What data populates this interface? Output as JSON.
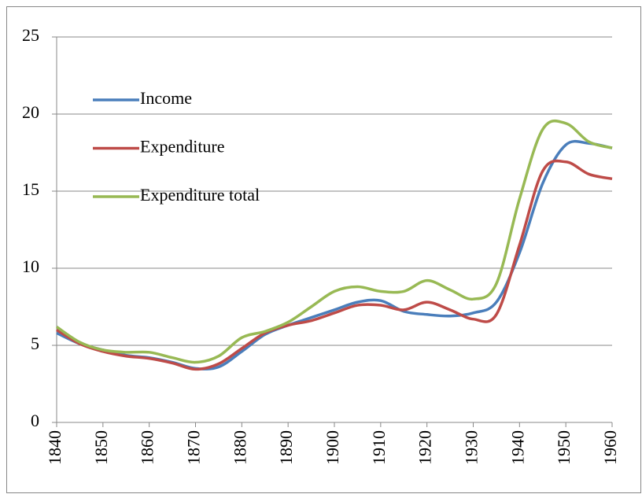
{
  "chart_data": {
    "type": "line",
    "x": [
      1840,
      1845,
      1850,
      1855,
      1860,
      1865,
      1870,
      1875,
      1880,
      1885,
      1890,
      1895,
      1900,
      1905,
      1910,
      1915,
      1920,
      1925,
      1930,
      1935,
      1940,
      1945,
      1950,
      1955,
      1960
    ],
    "series": [
      {
        "name": "Income",
        "color": "#4a7ebb",
        "values": [
          5.8,
          5.1,
          4.7,
          4.35,
          4.2,
          3.9,
          3.5,
          3.6,
          4.6,
          5.7,
          6.3,
          6.8,
          7.3,
          7.8,
          7.9,
          7.2,
          7.0,
          6.9,
          7.1,
          7.8,
          11.0,
          15.5,
          18.0,
          18.1,
          17.8
        ]
      },
      {
        "name": "Expenditure",
        "color": "#be4b48",
        "values": [
          6.0,
          5.1,
          4.6,
          4.3,
          4.15,
          3.85,
          3.45,
          3.8,
          4.8,
          5.8,
          6.3,
          6.6,
          7.1,
          7.6,
          7.6,
          7.3,
          7.8,
          7.3,
          6.7,
          7.0,
          11.5,
          16.3,
          16.9,
          16.1,
          15.8
        ]
      },
      {
        "name": "Expenditure total",
        "color": "#98b954",
        "values": [
          6.2,
          5.2,
          4.7,
          4.55,
          4.55,
          4.2,
          3.9,
          4.3,
          5.5,
          5.9,
          6.5,
          7.5,
          8.5,
          8.8,
          8.5,
          8.5,
          9.2,
          8.6,
          8.0,
          9.0,
          14.5,
          19.0,
          19.4,
          18.2,
          17.8
        ]
      }
    ],
    "xlim": [
      1840,
      1960
    ],
    "xticks": [
      1840,
      1850,
      1860,
      1870,
      1880,
      1890,
      1900,
      1910,
      1920,
      1930,
      1940,
      1950,
      1960
    ],
    "ylim": [
      0,
      25
    ],
    "yticks": [
      0,
      5,
      10,
      15,
      20,
      25
    ],
    "grid": true,
    "legend": "left"
  }
}
